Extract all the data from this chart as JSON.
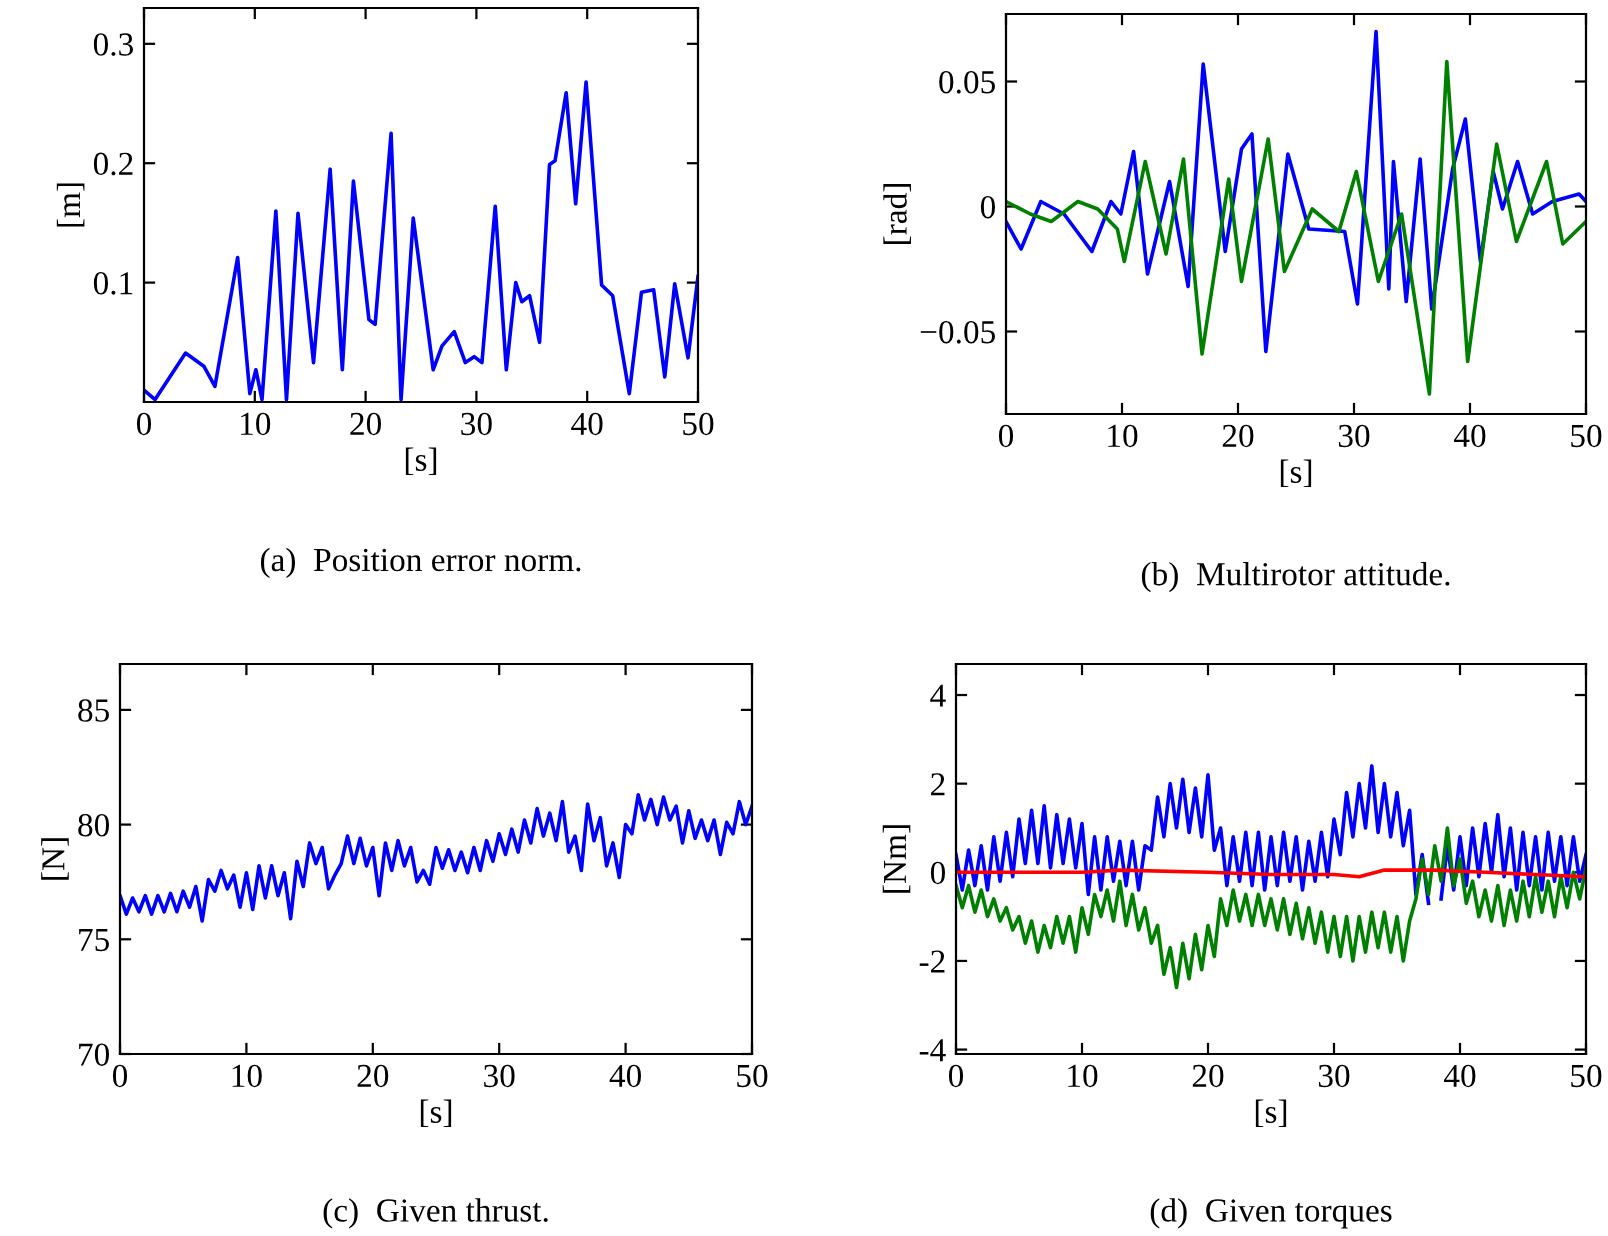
{
  "chart_data": [
    {
      "type": "line",
      "title": "(a)  Position error norm.",
      "xlabel": "[s]",
      "ylabel": "[m]",
      "xlim": [
        0,
        50
      ],
      "ylim": [
        0,
        0.33
      ],
      "xticks": [
        0,
        10,
        20,
        30,
        40,
        50
      ],
      "yticks": [
        0.1,
        0.2,
        0.3
      ],
      "grid": false,
      "series": [
        {
          "color": "#0000ff",
          "x": [
            0,
            1.0,
            3.75,
            5.4,
            6.4,
            8.45,
            9.55,
            10.1,
            10.65,
            11.9,
            12.86,
            13.9,
            15.3,
            16.8,
            17.9,
            18.9,
            20.3,
            20.86,
            22.3,
            23.2,
            24.3,
            26.1,
            26.9,
            28.0,
            29.0,
            29.8,
            30.5,
            31.7,
            32.7,
            33.55,
            34.1,
            34.8,
            35.7,
            36.6,
            37.1,
            38.1,
            38.96,
            39.9,
            41.3,
            42.3,
            43.8,
            44.9,
            46.0,
            47.0,
            47.9,
            49.1,
            50
          ],
          "values": [
            0.01,
            0.002,
            0.041,
            0.03,
            0.013,
            0.121,
            0.007,
            0.027,
            0.002,
            0.16,
            0.002,
            0.158,
            0.033,
            0.195,
            0.027,
            0.185,
            0.069,
            0.065,
            0.225,
            0.002,
            0.154,
            0.027,
            0.047,
            0.059,
            0.033,
            0.038,
            0.033,
            0.164,
            0.027,
            0.1,
            0.084,
            0.089,
            0.05,
            0.199,
            0.202,
            0.259,
            0.166,
            0.268,
            0.098,
            0.089,
            0.007,
            0.092,
            0.094,
            0.021,
            0.099,
            0.037,
            0.105
          ]
        }
      ]
    },
    {
      "type": "line",
      "title": "(b)  Multirotor attitude.",
      "xlabel": "[s]",
      "ylabel": "[rad]",
      "xlim": [
        0,
        50
      ],
      "ylim": [
        -0.083,
        0.077
      ],
      "xticks": [
        0,
        10,
        20,
        30,
        40,
        50
      ],
      "yticks": [
        {
          "value": -0.05,
          "label": "−0.05"
        },
        0,
        0.05
      ],
      "grid": false,
      "series": [
        {
          "color": "#0000ff",
          "x": [
            0,
            1.3,
            3,
            5,
            7.4,
            9.05,
            9.9,
            11,
            12.2,
            14.1,
            15.7,
            17.0,
            18.9,
            20.3,
            21.2,
            22.4,
            24.3,
            26.1,
            29.2,
            30.3,
            31.9,
            33,
            33.4,
            34.5,
            35.7,
            36.7,
            38.5,
            39.6,
            40.9,
            42,
            42.8,
            44.1,
            45.4,
            47.1,
            49.4,
            50
          ],
          "values": [
            -0.006,
            -0.017,
            0.002,
            -0.003,
            -0.018,
            0.002,
            -0.003,
            0.022,
            -0.027,
            0.01,
            -0.032,
            0.057,
            -0.018,
            0.023,
            0.029,
            -0.058,
            0.021,
            -0.009,
            -0.01,
            -0.039,
            0.07,
            -0.033,
            0.018,
            -0.038,
            0.019,
            -0.041,
            0.015,
            0.035,
            -0.022,
            0.014,
            -0.001,
            0.018,
            -0.003,
            0.002,
            0.005,
            0.002
          ]
        },
        {
          "color": "#008000",
          "x": [
            0,
            2.1,
            3.9,
            6.2,
            7.9,
            9.6,
            10.2,
            12.0,
            13.8,
            15.3,
            16.9,
            19.2,
            20.3,
            22.6,
            24.0,
            26.4,
            28.7,
            30.2,
            32.1,
            34.1,
            36.5,
            38.0,
            39.8,
            42.3,
            44.0,
            46.6,
            48.0,
            50
          ],
          "values": [
            0.002,
            -0.003,
            -0.006,
            0.002,
            -0.001,
            -0.009,
            -0.022,
            0.018,
            -0.019,
            0.019,
            -0.059,
            0.011,
            -0.03,
            0.027,
            -0.026,
            -0.001,
            -0.01,
            0.014,
            -0.03,
            -0.003,
            -0.075,
            0.058,
            -0.062,
            0.025,
            -0.014,
            0.018,
            -0.015,
            -0.006
          ]
        }
      ]
    },
    {
      "type": "line",
      "title": "(c)  Given thrust.",
      "xlabel": "[s]",
      "ylabel": "[N]",
      "xlim": [
        0,
        50
      ],
      "ylim": [
        70,
        87
      ],
      "xticks": [
        0,
        10,
        20,
        30,
        40,
        50
      ],
      "yticks": [
        70,
        75,
        80,
        85
      ],
      "grid": false,
      "series": [
        {
          "color": "#0000ff",
          "x": [
            0,
            0.5,
            1,
            1.5,
            2,
            2.5,
            3,
            3.5,
            4,
            4.5,
            5,
            5.5,
            6,
            6.5,
            7,
            7.5,
            8,
            8.5,
            9,
            9.5,
            10,
            10.5,
            11,
            11.5,
            12,
            12.5,
            13,
            13.5,
            14,
            14.5,
            15,
            15.5,
            16,
            16.5,
            17,
            17.5,
            18,
            18.5,
            19,
            19.5,
            20,
            20.5,
            21,
            21.5,
            22,
            22.5,
            23,
            23.5,
            24,
            24.5,
            25,
            25.5,
            26,
            26.5,
            27,
            27.5,
            28,
            28.5,
            29,
            29.5,
            30,
            30.5,
            31,
            31.5,
            32,
            32.5,
            33,
            33.5,
            34,
            34.5,
            35,
            35.5,
            36,
            36.5,
            37,
            37.5,
            38,
            38.5,
            39,
            39.5,
            40,
            40.5,
            41,
            41.5,
            42,
            42.5,
            43,
            43.5,
            44,
            44.5,
            45,
            45.5,
            46,
            46.5,
            47,
            47.5,
            48,
            48.5,
            49,
            49.5,
            50
          ],
          "values": [
            76.9,
            76.1,
            76.8,
            76.2,
            76.9,
            76.1,
            76.9,
            76.2,
            77.0,
            76.2,
            77.1,
            76.4,
            77.3,
            75.8,
            77.6,
            77.1,
            78.0,
            77.2,
            77.8,
            76.4,
            77.9,
            76.3,
            78.2,
            76.8,
            78.2,
            76.9,
            77.9,
            75.9,
            78.4,
            77.3,
            79.2,
            78.3,
            79.0,
            77.2,
            77.8,
            78.3,
            79.5,
            78.3,
            79.4,
            78.2,
            79.0,
            76.9,
            79.2,
            78.0,
            79.3,
            78.2,
            79.0,
            77.5,
            78.0,
            77.4,
            79.0,
            78.1,
            78.9,
            78.0,
            78.8,
            77.9,
            79.0,
            78.0,
            79.3,
            78.4,
            79.6,
            78.7,
            79.8,
            78.8,
            80.2,
            79.2,
            80.7,
            79.5,
            80.5,
            79.3,
            81.0,
            78.8,
            79.5,
            78.0,
            80.9,
            79.3,
            80.3,
            78.2,
            79.2,
            77.7,
            80.0,
            79.6,
            81.3,
            80.2,
            81.1,
            80.0,
            81.2,
            80.2,
            80.8,
            79.2,
            80.6,
            79.4,
            80.2,
            79.3,
            80.2,
            78.7,
            80.1,
            79.6,
            81.0,
            80.0,
            80.8
          ]
        }
      ]
    },
    {
      "type": "line",
      "title": "(d)  Given torques",
      "xlabel": "[s]",
      "ylabel": "[Nm]",
      "xlim": [
        0,
        50
      ],
      "ylim": [
        -4.1,
        4.7
      ],
      "xticks": [
        0,
        10,
        20,
        30,
        40,
        50
      ],
      "yticks": [
        -4,
        -2,
        0,
        2,
        4
      ],
      "grid": false,
      "series": [
        {
          "color": "#0000ff",
          "x": [
            0,
            0.5,
            1,
            1.5,
            2,
            2.5,
            3,
            3.5,
            4,
            4.5,
            5,
            5.5,
            6,
            6.5,
            7,
            7.5,
            8,
            8.5,
            9,
            9.5,
            10,
            10.5,
            11,
            11.5,
            12,
            12.5,
            13,
            13.5,
            14,
            14.5,
            15,
            15.5,
            16,
            16.5,
            17,
            17.5,
            18,
            18.5,
            19,
            19.5,
            20,
            20.5,
            21,
            21.5,
            22,
            22.5,
            23,
            23.5,
            24,
            24.5,
            25,
            25.5,
            26,
            26.5,
            27,
            27.5,
            28,
            28.5,
            29,
            29.5,
            30,
            30.5,
            31,
            31.5,
            32,
            32.5,
            33,
            33.5,
            34,
            34.5,
            35,
            35.5,
            36,
            36.5,
            37,
            37.5,
            38,
            38.5,
            39,
            39.5,
            40,
            40.5,
            41,
            41.5,
            42,
            42.5,
            43,
            43.5,
            44,
            44.5,
            45,
            45.5,
            46,
            46.5,
            47,
            47.5,
            48,
            48.5,
            49,
            49.5,
            50
          ],
          "values": [
            0.4,
            -0.4,
            0.5,
            -0.3,
            0.6,
            -0.4,
            0.8,
            -0.2,
            0.9,
            -0.1,
            1.2,
            0.2,
            1.4,
            0.2,
            1.5,
            0.1,
            1.3,
            0.2,
            1.2,
            0.1,
            1.1,
            -0.5,
            0.8,
            -0.4,
            0.8,
            -0.2,
            0.7,
            -0.3,
            0.7,
            -0.4,
            0.6,
            0.5,
            1.7,
            0.8,
            2.0,
            1.0,
            2.1,
            0.9,
            1.9,
            0.8,
            2.2,
            0.5,
            1.0,
            -0.3,
            0.8,
            -0.2,
            0.9,
            -0.3,
            0.9,
            -0.4,
            0.8,
            -0.3,
            0.9,
            -0.2,
            0.8,
            -0.4,
            0.7,
            -0.2,
            0.9,
            -0.1,
            1.2,
            0.4,
            1.8,
            0.8,
            2.0,
            1.0,
            2.4,
            0.9,
            2.0,
            0.8,
            1.8,
            0.6,
            1.4,
            -0.5,
            0.4,
            -0.7,
            null,
            -0.6,
            0.6,
            -0.4,
            0.8,
            -0.3,
            1.0,
            -0.1,
            1.1,
            0.0,
            1.3,
            -0.1,
            1.0,
            -0.4,
            0.9,
            -0.3,
            0.8,
            -0.4,
            0.9,
            -0.2,
            0.8,
            -0.3,
            0.8,
            -0.2,
            0.4
          ]
        },
        {
          "color": "#008000",
          "x": [
            0,
            0.5,
            1,
            1.5,
            2,
            2.5,
            3,
            3.5,
            4,
            4.5,
            5,
            5.5,
            6,
            6.5,
            7,
            7.5,
            8,
            8.5,
            9,
            9.5,
            10,
            10.5,
            11,
            11.5,
            12,
            12.5,
            13,
            13.5,
            14,
            14.5,
            15,
            15.5,
            16,
            16.5,
            17,
            17.5,
            18,
            18.5,
            19,
            19.5,
            20,
            20.5,
            21,
            21.5,
            22,
            22.5,
            23,
            23.5,
            24,
            24.5,
            25,
            25.5,
            26,
            26.5,
            27,
            27.5,
            28,
            28.5,
            29,
            29.5,
            30,
            30.5,
            31,
            31.5,
            32,
            32.5,
            33,
            33.5,
            34,
            34.5,
            35,
            35.5,
            36,
            36.5,
            37,
            37.5,
            38,
            38.5,
            39,
            39.5,
            40,
            40.5,
            41,
            41.5,
            42,
            42.5,
            43,
            43.5,
            44,
            44.5,
            45,
            45.5,
            46,
            46.5,
            47,
            47.5,
            48,
            48.5,
            49,
            49.5,
            50
          ],
          "values": [
            -0.3,
            -0.8,
            -0.3,
            -0.9,
            -0.4,
            -1.0,
            -0.6,
            -1.1,
            -0.8,
            -1.3,
            -1.0,
            -1.6,
            -1.1,
            -1.8,
            -1.2,
            -1.7,
            -1.0,
            -1.6,
            -1.0,
            -1.8,
            -0.8,
            -1.4,
            -0.5,
            -1.0,
            -0.4,
            -1.1,
            -0.2,
            -1.2,
            -0.5,
            -1.3,
            -0.8,
            -1.6,
            -1.2,
            -2.3,
            -1.7,
            -2.6,
            -1.6,
            -2.4,
            -1.4,
            -2.2,
            -1.2,
            -1.9,
            -0.6,
            -1.2,
            -0.4,
            -1.1,
            -0.5,
            -1.2,
            -0.5,
            -1.2,
            -0.6,
            -1.3,
            -0.6,
            -1.4,
            -0.7,
            -1.5,
            -0.8,
            -1.6,
            -0.9,
            -1.8,
            -1.0,
            -1.9,
            -1.0,
            -2.0,
            -1.0,
            -1.8,
            -0.9,
            -1.7,
            -0.9,
            -1.8,
            -1.0,
            -2.0,
            -1.1,
            -0.6,
            0.3,
            -0.5,
            0.6,
            -0.2,
            1.0,
            -0.3,
            0.3,
            -0.7,
            -0.2,
            -1.0,
            -0.4,
            -1.1,
            -0.3,
            -1.2,
            -0.4,
            -1.1,
            -0.2,
            -1.0,
            -0.1,
            -0.9,
            -0.2,
            -1.0,
            -0.1,
            -0.8,
            0.0,
            -0.6,
            0.1
          ]
        },
        {
          "color": "#ff0000",
          "x": [
            0,
            10,
            13,
            20,
            25,
            30,
            32,
            34,
            38,
            42,
            46,
            50
          ],
          "values": [
            0.0,
            0.0,
            0.05,
            0.0,
            -0.05,
            -0.05,
            -0.1,
            0.05,
            0.05,
            0.0,
            -0.05,
            -0.1
          ]
        }
      ]
    }
  ]
}
